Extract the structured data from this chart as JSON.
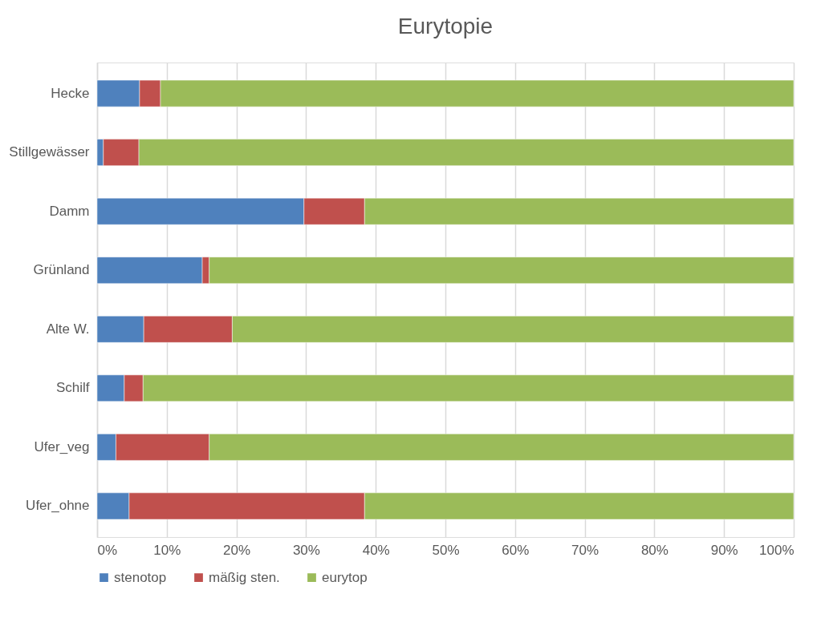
{
  "chart_data": {
    "type": "bar",
    "orientation": "horizontal",
    "stacked": true,
    "title": "Eurytopie",
    "categories": [
      "Hecke",
      "Stillgewässer",
      "Damm",
      "Grünland",
      "Alte W.",
      "Schilf",
      "Ufer_veg",
      "Ufer_ohne"
    ],
    "series": [
      {
        "name": "stenotop",
        "color": "#4f81bd",
        "values": [
          6.1,
          0.9,
          29.7,
          15.1,
          6.7,
          3.9,
          2.7,
          4.6
        ]
      },
      {
        "name": "mäßig sten.",
        "color": "#c0504d",
        "values": [
          3.0,
          5.1,
          8.7,
          1.0,
          12.7,
          2.7,
          13.4,
          33.8
        ]
      },
      {
        "name": "eurytop",
        "color": "#9bbb59",
        "values": [
          90.9,
          94.0,
          61.6,
          83.9,
          80.6,
          93.4,
          83.9,
          61.6
        ]
      }
    ],
    "xlim": [
      0,
      100
    ],
    "xticks": [
      {
        "value": 0,
        "label": "0%"
      },
      {
        "value": 10,
        "label": "10%"
      },
      {
        "value": 20,
        "label": "20%"
      },
      {
        "value": 30,
        "label": "30%"
      },
      {
        "value": 40,
        "label": "40%"
      },
      {
        "value": 50,
        "label": "50%"
      },
      {
        "value": 60,
        "label": "60%"
      },
      {
        "value": 70,
        "label": "70%"
      },
      {
        "value": 80,
        "label": "80%"
      },
      {
        "value": 90,
        "label": "90%"
      },
      {
        "value": 100,
        "label": "100%"
      }
    ],
    "grid": "x",
    "legend": "bottom"
  }
}
